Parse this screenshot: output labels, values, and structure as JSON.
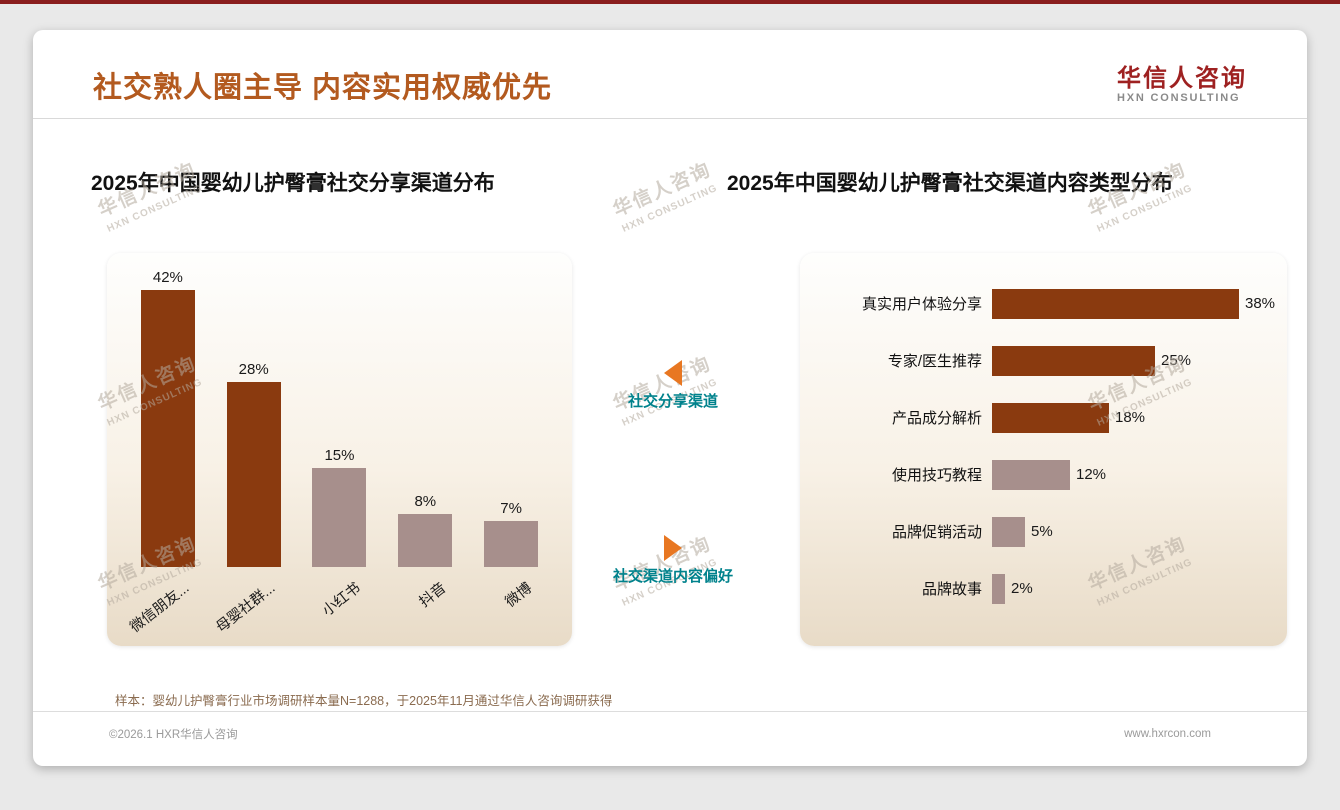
{
  "header": {
    "title": "社交熟人圈主导 内容实用权威优先",
    "logo_cn": "华信人咨询",
    "logo_en": "HXN CONSULTING"
  },
  "annotations": {
    "share_channel": "社交分享渠道",
    "content_preference": "社交渠道内容偏好"
  },
  "watermark": {
    "cn": "华信人咨询",
    "en": "HXN CONSULTING"
  },
  "footnote": "样本：婴幼儿护臀膏行业市场调研样本量N=1288，于2025年11月通过华信人咨询调研获得",
  "footer": {
    "left": "©2026.1 HXR华信人咨询",
    "right": "www.hxrcon.com"
  },
  "colors": {
    "title": "#B35A1F",
    "logo_red": "#9E2121",
    "dark_brown": "#8A3A0F",
    "mauve": "#A78F8C",
    "teal": "#00828C",
    "arrow_orange": "#E87722",
    "top_bar": "#8A1E1E"
  },
  "chart_data": [
    {
      "type": "bar",
      "orientation": "vertical",
      "title": "2025年中国婴幼儿护臀膏社交分享渠道分布",
      "categories": [
        "微信朋友...",
        "母婴社群...",
        "小红书",
        "抖音",
        "微博"
      ],
      "values": [
        42,
        28,
        15,
        8,
        7
      ],
      "unit": "%",
      "ylim": [
        0,
        45
      ],
      "grid": false,
      "legend": "none",
      "bar_colors": [
        "#8A3A0F",
        "#8A3A0F",
        "#A78F8C",
        "#A78F8C",
        "#A78F8C"
      ]
    },
    {
      "type": "bar",
      "orientation": "horizontal",
      "title": "2025年中国婴幼儿护臀膏社交渠道内容类型分布",
      "categories": [
        "真实用户体验分享",
        "专家/医生推荐",
        "产品成分解析",
        "使用技巧教程",
        "品牌促销活动",
        "品牌故事"
      ],
      "values": [
        38,
        25,
        18,
        12,
        5,
        2
      ],
      "unit": "%",
      "xlim": [
        0,
        40
      ],
      "grid": false,
      "legend": "none",
      "bar_colors": [
        "#8A3A0F",
        "#8A3A0F",
        "#8A3A0F",
        "#A78F8C",
        "#A78F8C",
        "#A78F8C"
      ]
    }
  ]
}
